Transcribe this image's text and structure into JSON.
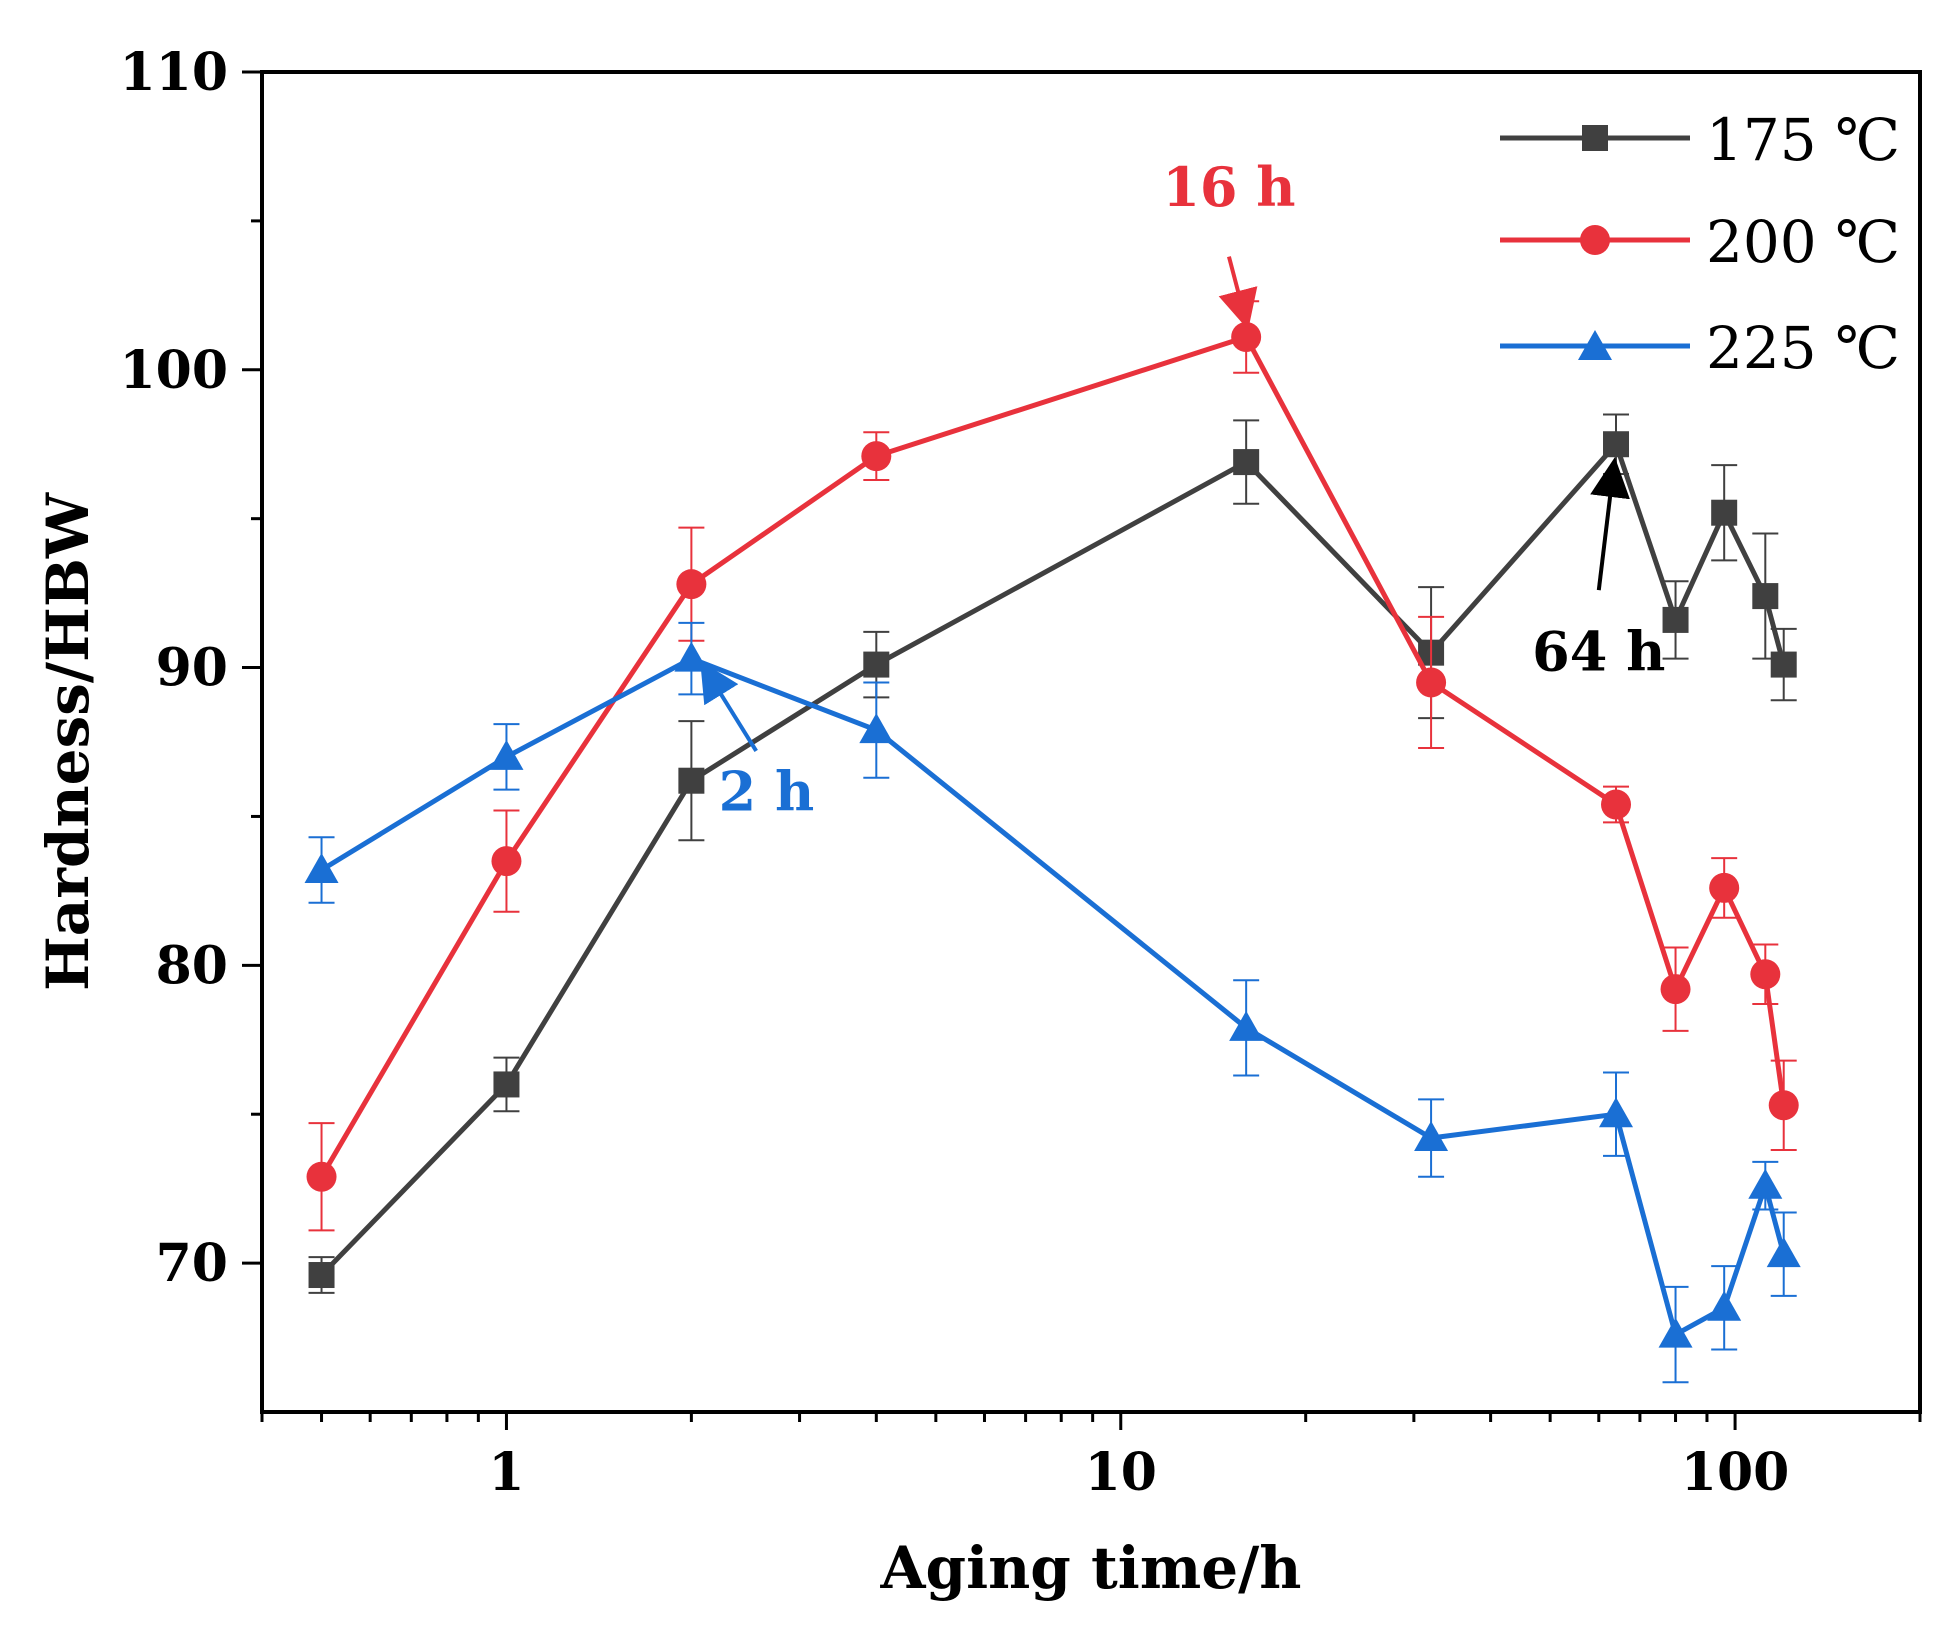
{
  "chart_data": {
    "type": "line",
    "title": "",
    "xlabel": "Aging time/h",
    "ylabel": "Hardness/HBW",
    "xscale": "log",
    "xlim": [
      0.4,
      200
    ],
    "ylim": [
      65,
      110
    ],
    "xticks": [
      {
        "value": 1,
        "label": "1"
      },
      {
        "value": 10,
        "label": "10"
      },
      {
        "value": 100,
        "label": "100"
      }
    ],
    "yticks": [
      {
        "value": 70,
        "label": "70"
      },
      {
        "value": 80,
        "label": "80"
      },
      {
        "value": 90,
        "label": "90"
      },
      {
        "value": 100,
        "label": "100"
      },
      {
        "value": 110,
        "label": "110"
      }
    ],
    "legend_position": "top-right",
    "series": [
      {
        "name": "175 ℃",
        "color": "#404040",
        "marker": "square",
        "points": [
          {
            "x": 0.5,
            "y": 69.6,
            "err": 0.6
          },
          {
            "x": 1,
            "y": 76.0,
            "err": 0.9
          },
          {
            "x": 2,
            "y": 86.2,
            "err": 2.0
          },
          {
            "x": 4,
            "y": 90.1,
            "err": 1.1
          },
          {
            "x": 16,
            "y": 96.9,
            "err": 1.4
          },
          {
            "x": 32,
            "y": 90.5,
            "err": 2.2
          },
          {
            "x": 64,
            "y": 97.5,
            "err": 1.0
          },
          {
            "x": 80,
            "y": 91.6,
            "err": 1.3
          },
          {
            "x": 96,
            "y": 95.2,
            "err": 1.6
          },
          {
            "x": 112,
            "y": 92.4,
            "err": 2.1
          },
          {
            "x": 120,
            "y": 90.1,
            "err": 1.2
          }
        ]
      },
      {
        "name": "200 ℃",
        "color": "#e8323c",
        "marker": "circle",
        "points": [
          {
            "x": 0.5,
            "y": 72.9,
            "err": 1.8
          },
          {
            "x": 1,
            "y": 83.5,
            "err": 1.7
          },
          {
            "x": 2,
            "y": 92.8,
            "err": 1.9
          },
          {
            "x": 4,
            "y": 97.1,
            "err": 0.8
          },
          {
            "x": 16,
            "y": 101.1,
            "err": 1.2
          },
          {
            "x": 32,
            "y": 89.5,
            "err": 2.2
          },
          {
            "x": 64,
            "y": 85.4,
            "err": 0.6
          },
          {
            "x": 80,
            "y": 79.2,
            "err": 1.4
          },
          {
            "x": 96,
            "y": 82.6,
            "err": 1.0
          },
          {
            "x": 112,
            "y": 79.7,
            "err": 1.0
          },
          {
            "x": 120,
            "y": 75.3,
            "err": 1.5
          }
        ]
      },
      {
        "name": "225 ℃",
        "color": "#1a6fd4",
        "marker": "triangle",
        "points": [
          {
            "x": 0.5,
            "y": 83.2,
            "err": 1.1
          },
          {
            "x": 1,
            "y": 87.0,
            "err": 1.1
          },
          {
            "x": 2,
            "y": 90.3,
            "err": 1.2
          },
          {
            "x": 4,
            "y": 87.9,
            "err": 1.6
          },
          {
            "x": 16,
            "y": 77.9,
            "err": 1.6
          },
          {
            "x": 32,
            "y": 74.2,
            "err": 1.3
          },
          {
            "x": 64,
            "y": 75.0,
            "err": 1.4
          },
          {
            "x": 80,
            "y": 67.6,
            "err": 1.6
          },
          {
            "x": 96,
            "y": 68.5,
            "err": 1.4
          },
          {
            "x": 112,
            "y": 72.6,
            "err": 0.8
          },
          {
            "x": 120,
            "y": 70.3,
            "err": 1.4
          }
        ]
      }
    ],
    "annotations": [
      {
        "text": "16 h",
        "color": "#e8323c",
        "text_x": 15,
        "text_y": 105.5,
        "arrow_from": [
          15,
          103.8
        ],
        "arrow_to": [
          16,
          101.6
        ]
      },
      {
        "text": "2 h",
        "color": "#1a6fd4",
        "text_x": 2.65,
        "text_y": 85.2,
        "arrow_from": [
          2.55,
          87.2
        ],
        "arrow_to": [
          2.1,
          90.0
        ]
      },
      {
        "text": "64 h",
        "color": "#000000",
        "text_x": 60,
        "text_y": 89.9,
        "arrow_from": [
          60,
          92.6
        ],
        "arrow_to": [
          63.5,
          96.8
        ]
      }
    ]
  }
}
